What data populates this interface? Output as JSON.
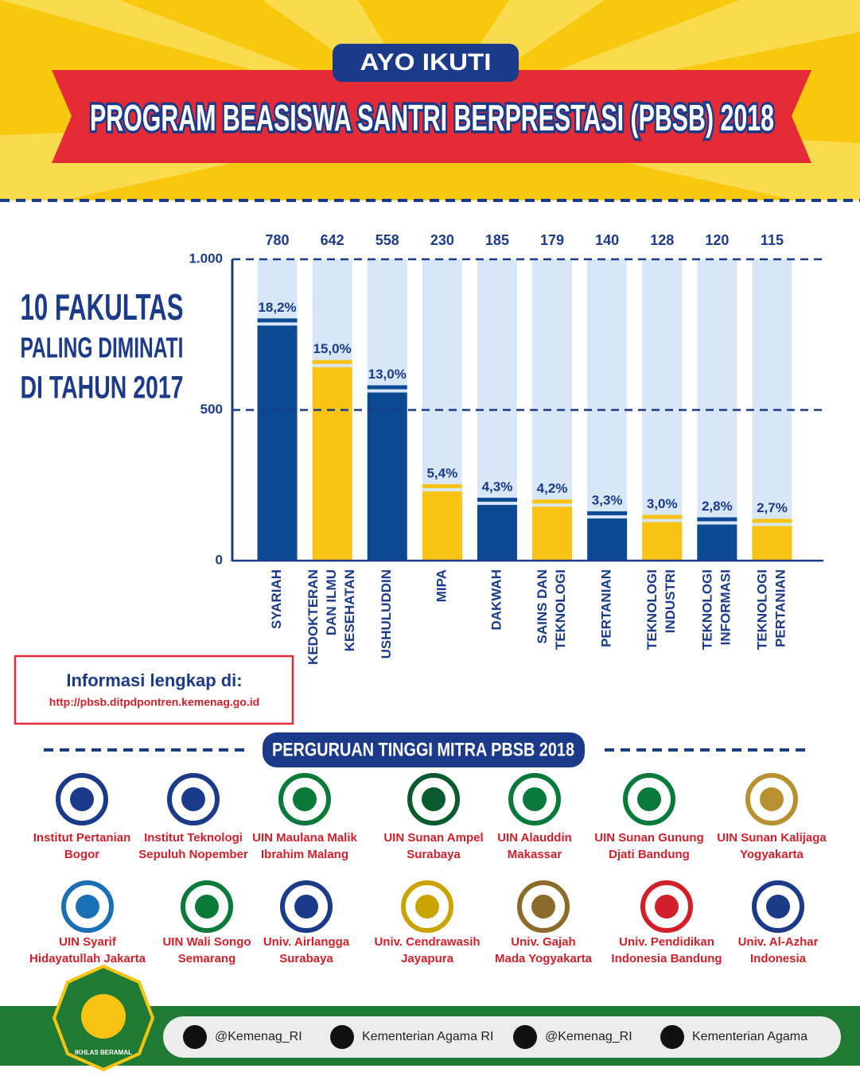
{
  "header": {
    "badge": "AYO IKUTI",
    "title": "PROGRAM BEASISWA SANTRI BERPRESTASI (PBSB) 2018"
  },
  "chart_data": {
    "type": "bar",
    "title": [
      "10 FAKULTAS",
      "PALING DIMINATI",
      "DI TAHUN 2017"
    ],
    "categories": [
      [
        "SYARIAH"
      ],
      [
        "KEDOKTERAN",
        "DAN ILMU",
        "KESEHATAN"
      ],
      [
        "USHULUDDIN"
      ],
      [
        "MIPA"
      ],
      [
        "DAKWAH"
      ],
      [
        "SAINS DAN",
        "TEKNOLOGI"
      ],
      [
        "PERTANIAN"
      ],
      [
        "TEKNOLOGI",
        "INDUSTRI"
      ],
      [
        "TEKNOLOGI",
        "INFORMASI"
      ],
      [
        "TEKNOLOGI",
        "PERTANIAN"
      ]
    ],
    "values": [
      780,
      642,
      558,
      230,
      185,
      179,
      140,
      128,
      120,
      115
    ],
    "colors": [
      "#0d4a94",
      "#f8c313",
      "#0d4a94",
      "#f8c313",
      "#0d4a94",
      "#f8c313",
      "#0d4a94",
      "#f8c313",
      "#0d4a94",
      "#f8c313"
    ],
    "track_color": "#d7e7f7",
    "shares": {
      "values": [
        18.2,
        15.0,
        13.0,
        5.4,
        4.3,
        4.2,
        3.3,
        3.0,
        2.8,
        2.7
      ],
      "value_labels": [
        "18,2%",
        "15,0%",
        "13,0%",
        "5,4%",
        "4,3%",
        "4,2%",
        "3,3%",
        "3,0%",
        "2,8%",
        "2,7%"
      ]
    },
    "ylim": [
      0,
      1000
    ],
    "yticks": [
      0,
      500,
      {
        "value": 1000,
        "label": "1.000"
      }
    ],
    "grid": true
  },
  "info": {
    "heading": "Informasi lengkap di:",
    "url": "http://pbsb.ditpdpontren.kemenag.go.id"
  },
  "partners": {
    "heading": "PERGURUAN TINGGI MITRA PBSB 2018",
    "items": [
      [
        "Institut Pertanian",
        "Bogor"
      ],
      [
        "Institut Teknologi",
        "Sepuluh Nopember"
      ],
      [
        "UIN Maulana Malik",
        "Ibrahim Malang"
      ],
      [
        "UIN Sunan Ampel",
        "Surabaya"
      ],
      [
        "UIN Alauddin",
        "Makassar"
      ],
      [
        "UIN Sunan Gunung",
        "Djati Bandung"
      ],
      [
        "UIN Sunan Kalijaga",
        "Yogyakarta"
      ],
      [
        "UIN Syarif",
        "Hidayatullah Jakarta"
      ],
      [
        "UIN Wali Songo",
        "Semarang"
      ],
      [
        "Univ. Airlangga",
        "Surabaya"
      ],
      [
        "Univ. Cendrawasih",
        "Jayapura"
      ],
      [
        "Univ. Gajah",
        "Mada Yogyakarta"
      ],
      [
        "Univ. Pendidikan",
        "Indonesia Bandung"
      ],
      [
        "Univ. Al-Azhar",
        "Indonesia"
      ]
    ]
  },
  "footer": {
    "motto": "IKHLAS BERAMAL",
    "socials": [
      "@Kemenag_RI",
      "Kementerian Agama RI",
      "@Kemenag_RI",
      "Kementerian Agama"
    ]
  }
}
